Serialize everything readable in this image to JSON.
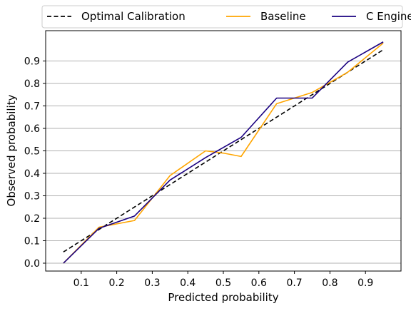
{
  "chart_data": {
    "type": "line",
    "xlabel": "Predicted probability",
    "ylabel": "Observed probability",
    "xlim": [
      0.0,
      1.0
    ],
    "ylim": [
      -0.035,
      1.035
    ],
    "xticks": [
      0.1,
      0.2,
      0.3,
      0.4,
      0.5,
      0.6,
      0.7,
      0.8,
      0.9
    ],
    "yticks": [
      0.0,
      0.1,
      0.2,
      0.3,
      0.4,
      0.5,
      0.6,
      0.7,
      0.8,
      0.9
    ],
    "grid": "horizontal",
    "legend_position": "top",
    "series": [
      {
        "name": "Optimal Calibration",
        "color": "#000000",
        "style": "dashed",
        "x": [
          0.05,
          0.95
        ],
        "y": [
          0.05,
          0.95
        ]
      },
      {
        "name": "Baseline",
        "color": "#ffa500",
        "style": "solid",
        "x": [
          0.05,
          0.15,
          0.25,
          0.35,
          0.45,
          0.5,
          0.55,
          0.65,
          0.75,
          0.85,
          0.95
        ],
        "y": [
          0.0,
          0.16,
          0.19,
          0.39,
          0.5,
          0.49,
          0.475,
          0.71,
          0.76,
          0.85,
          0.98
        ]
      },
      {
        "name": "C Engine",
        "color": "#1a0080",
        "style": "solid",
        "x": [
          0.05,
          0.15,
          0.25,
          0.35,
          0.45,
          0.55,
          0.65,
          0.75,
          0.85,
          0.95
        ],
        "y": [
          0.0,
          0.155,
          0.21,
          0.37,
          0.47,
          0.56,
          0.735,
          0.735,
          0.895,
          0.985
        ]
      }
    ]
  }
}
